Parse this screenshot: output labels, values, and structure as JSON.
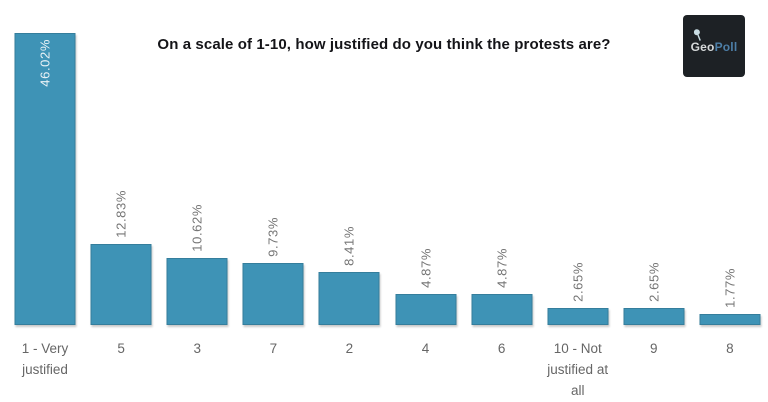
{
  "chart_data": {
    "type": "bar",
    "title": "On a scale of 1-10, how justified do you think the protests are?",
    "categories": [
      "1 - Very justified",
      "5",
      "3",
      "7",
      "2",
      "4",
      "6",
      "10 - Not justified at all",
      "9",
      "8"
    ],
    "values": [
      46.02,
      12.83,
      10.62,
      9.73,
      8.41,
      4.87,
      4.87,
      2.65,
      2.65,
      1.77
    ],
    "value_labels": [
      "46.02%",
      "12.83%",
      "10.62%",
      "9.73%",
      "8.41%",
      "4.87%",
      "4.87%",
      "2.65%",
      "2.65%",
      "1.77%"
    ],
    "unit": "%",
    "ylim": [
      0,
      51.2
    ],
    "grid": false,
    "legend": false,
    "orientation": "vertical",
    "first_value_label_inside_bar": true,
    "bar_color": "#3e93b6",
    "value_label_color_outside": "#757575",
    "value_label_color_inside": "#e9f2f6",
    "axis_label_color": "#666666",
    "title_color": "#141418"
  },
  "logo": {
    "text_primary": "Geo",
    "text_secondary": "Poll",
    "bg_color": "#1d2125",
    "primary_color": "#d6d9da",
    "secondary_color": "#4d7fa8",
    "pin_color": "#c9dde4"
  }
}
